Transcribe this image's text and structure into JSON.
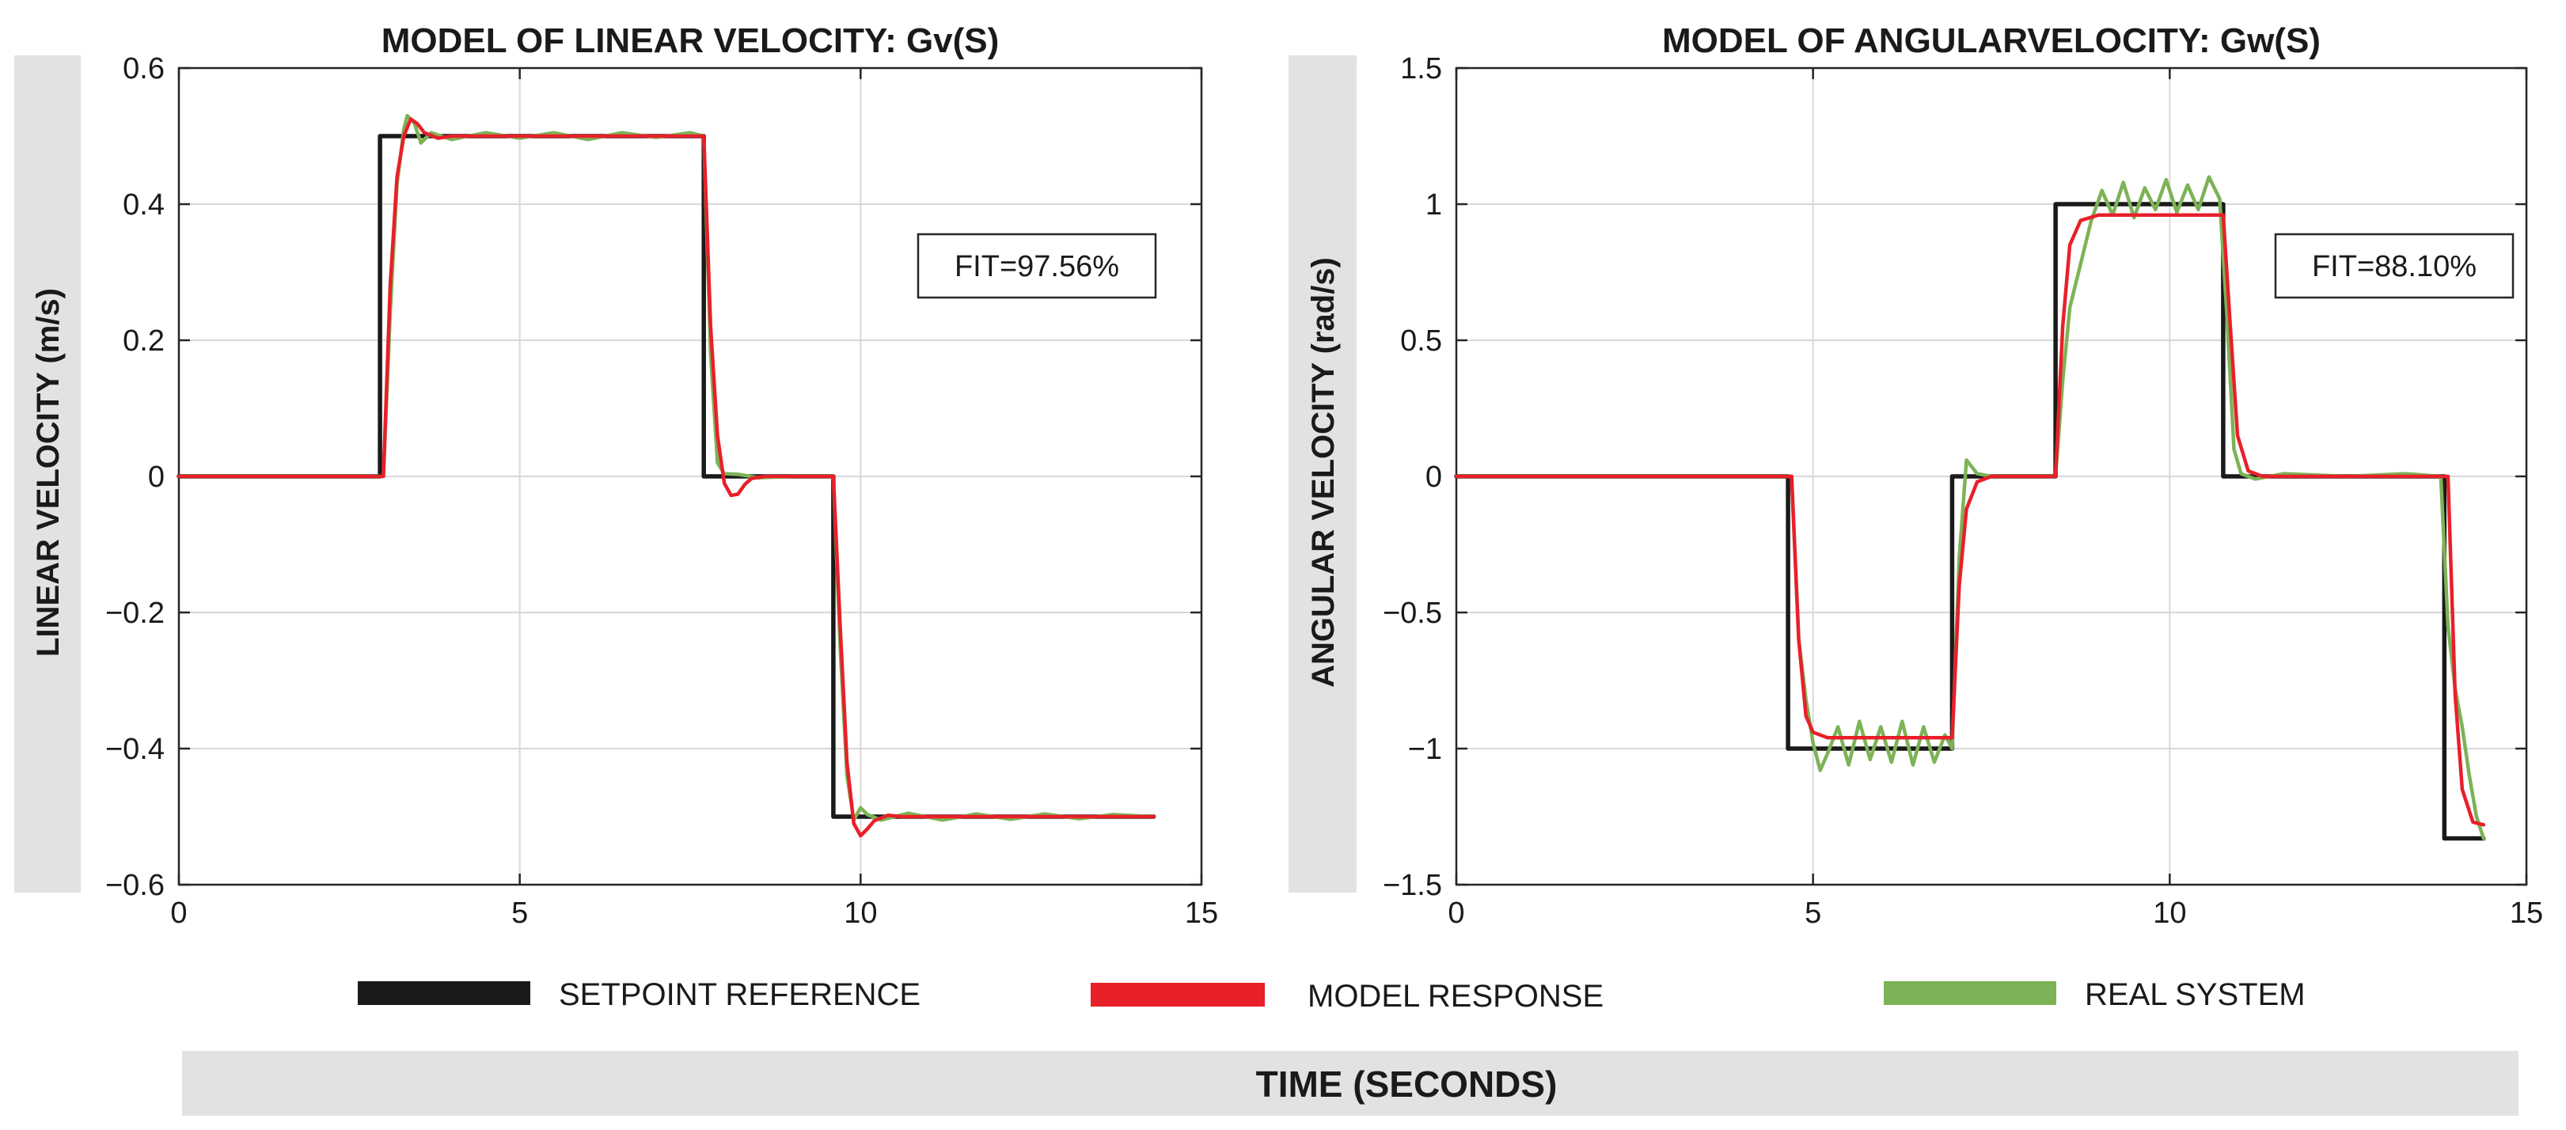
{
  "colors": {
    "setpoint": "#1a1a1a",
    "model": "#e8202a",
    "real": "#7cb356",
    "grid": "#d8d8d8",
    "band": "#e2e2e4"
  },
  "shared_xlabel": "TIME (SECONDS)",
  "legend": [
    {
      "key": "setpoint",
      "label": "SETPOINT REFERENCE"
    },
    {
      "key": "model",
      "label": "MODEL RESPONSE"
    },
    {
      "key": "real",
      "label": "REAL SYSTEM"
    }
  ],
  "chart_data": [
    {
      "type": "line",
      "title": "MODEL OF LINEAR VELOCITY: Gv(S)",
      "ylabel": "LINEAR VELOCITY (m/s)",
      "xlabel": "TIME (SECONDS)",
      "xlim": [
        0,
        15
      ],
      "ylim": [
        -0.6,
        0.6
      ],
      "xticks": [
        0,
        5,
        10,
        15
      ],
      "yticks": [
        -0.6,
        -0.4,
        -0.2,
        0,
        0.2,
        0.4,
        0.6
      ],
      "ytick_labels": [
        "−0.6",
        "−0.4",
        "−0.2",
        "0",
        "0.2",
        "0.4",
        "0.6"
      ],
      "grid": true,
      "annotation": "FIT=97.56%",
      "t_end": 14.3,
      "series": [
        {
          "name": "SETPOINT REFERENCE",
          "key": "setpoint",
          "x": [
            0,
            2.95,
            2.95,
            7.7,
            7.7,
            9.6,
            9.6,
            14.3
          ],
          "y": [
            0,
            0,
            0.5,
            0.5,
            0,
            0,
            -0.5,
            -0.5
          ]
        },
        {
          "name": "MODEL RESPONSE",
          "key": "model",
          "x": [
            0,
            3.0,
            3.1,
            3.2,
            3.3,
            3.4,
            3.5,
            3.6,
            3.8,
            4.0,
            7.7,
            7.8,
            7.9,
            8.0,
            8.1,
            8.2,
            8.3,
            8.4,
            8.6,
            8.8,
            9.6,
            9.7,
            9.8,
            9.9,
            10.0,
            10.1,
            10.2,
            10.4,
            10.6,
            14.3
          ],
          "y": [
            0,
            0,
            0.28,
            0.44,
            0.5,
            0.525,
            0.518,
            0.505,
            0.497,
            0.5,
            0.5,
            0.22,
            0.06,
            -0.01,
            -0.028,
            -0.026,
            -0.012,
            -0.003,
            0,
            0,
            0,
            -0.22,
            -0.42,
            -0.51,
            -0.528,
            -0.518,
            -0.506,
            -0.498,
            -0.5,
            -0.5
          ]
        },
        {
          "name": "REAL SYSTEM",
          "key": "real",
          "x": [
            0,
            3.0,
            3.1,
            3.2,
            3.3,
            3.35,
            3.45,
            3.55,
            3.7,
            4.0,
            4.5,
            5.0,
            5.5,
            6.0,
            6.5,
            7.0,
            7.5,
            7.7,
            7.8,
            7.9,
            8.0,
            8.2,
            8.5,
            9.0,
            9.6,
            9.7,
            9.8,
            9.9,
            10.0,
            10.1,
            10.3,
            10.7,
            11.2,
            11.7,
            12.2,
            12.7,
            13.2,
            13.7,
            14.3
          ],
          "y": [
            0,
            0,
            0.24,
            0.43,
            0.51,
            0.53,
            0.52,
            0.49,
            0.505,
            0.495,
            0.505,
            0.497,
            0.505,
            0.495,
            0.505,
            0.498,
            0.505,
            0.5,
            0.18,
            0.02,
            0.004,
            0.003,
            -0.002,
            0,
            0,
            -0.25,
            -0.44,
            -0.505,
            -0.487,
            -0.497,
            -0.505,
            -0.495,
            -0.505,
            -0.496,
            -0.504,
            -0.496,
            -0.503,
            -0.497,
            -0.5
          ]
        }
      ]
    },
    {
      "type": "line",
      "title": "MODEL OF ANGULARVELOCITY: Gw(S)",
      "ylabel": "ANGULAR VELOCITY (rad/s)",
      "xlabel": "TIME (SECONDS)",
      "xlim": [
        0,
        15
      ],
      "ylim": [
        -1.5,
        1.5
      ],
      "xticks": [
        0,
        5,
        10,
        15
      ],
      "yticks": [
        -1.5,
        -1,
        -0.5,
        0,
        0.5,
        1,
        1.5
      ],
      "ytick_labels": [
        "−1.5",
        "−1",
        "−0.5",
        "0",
        "0.5",
        "1",
        "1.5"
      ],
      "grid": true,
      "annotation": "FIT=88.10%",
      "t_end": 14.4,
      "series": [
        {
          "name": "SETPOINT REFERENCE",
          "key": "setpoint",
          "x": [
            0,
            4.65,
            4.65,
            6.95,
            6.95,
            8.4,
            8.4,
            10.75,
            10.75,
            13.85,
            13.85,
            14.4
          ],
          "y": [
            0,
            0,
            -1,
            -1,
            0,
            0,
            1,
            1,
            0,
            0,
            -1.33,
            -1.33
          ]
        },
        {
          "name": "MODEL RESPONSE",
          "key": "model",
          "x": [
            0,
            4.7,
            4.8,
            4.9,
            5.0,
            5.2,
            6.95,
            7.05,
            7.15,
            7.3,
            7.5,
            8.4,
            8.5,
            8.6,
            8.75,
            9.0,
            10.75,
            10.85,
            10.95,
            11.1,
            11.3,
            13.9,
            14.0,
            14.1,
            14.25,
            14.4
          ],
          "y": [
            0,
            0,
            -0.6,
            -0.88,
            -0.94,
            -0.96,
            -0.96,
            -0.4,
            -0.12,
            -0.02,
            0,
            0,
            0.55,
            0.85,
            0.94,
            0.96,
            0.96,
            0.55,
            0.15,
            0.02,
            0,
            0,
            -0.8,
            -1.15,
            -1.27,
            -1.28
          ]
        },
        {
          "name": "REAL SYSTEM",
          "key": "real",
          "x": [
            0,
            4.7,
            4.8,
            4.9,
            5.0,
            5.1,
            5.2,
            5.35,
            5.5,
            5.65,
            5.8,
            5.95,
            6.1,
            6.25,
            6.4,
            6.55,
            6.7,
            6.85,
            6.95,
            7.05,
            7.15,
            7.3,
            7.5,
            8.4,
            8.5,
            8.6,
            8.75,
            8.9,
            9.05,
            9.2,
            9.35,
            9.5,
            9.65,
            9.8,
            9.95,
            10.1,
            10.25,
            10.4,
            10.55,
            10.7,
            10.8,
            10.9,
            11.0,
            11.2,
            11.6,
            12.5,
            13.3,
            13.8,
            13.9,
            14.0,
            14.1,
            14.2,
            14.3,
            14.4
          ],
          "y": [
            0,
            0,
            -0.6,
            -0.82,
            -0.98,
            -1.08,
            -1.02,
            -0.92,
            -1.06,
            -0.9,
            -1.04,
            -0.92,
            -1.05,
            -0.9,
            -1.06,
            -0.92,
            -1.05,
            -0.95,
            -1.0,
            -0.3,
            0.06,
            0.01,
            0,
            0,
            0.35,
            0.62,
            0.78,
            0.94,
            1.05,
            0.96,
            1.08,
            0.95,
            1.06,
            0.98,
            1.09,
            0.97,
            1.07,
            0.98,
            1.1,
            1.02,
            0.6,
            0.1,
            0.01,
            -0.01,
            0.01,
            0,
            0.01,
            0.0,
            -0.55,
            -0.78,
            -0.92,
            -1.1,
            -1.25,
            -1.33
          ]
        }
      ]
    }
  ]
}
